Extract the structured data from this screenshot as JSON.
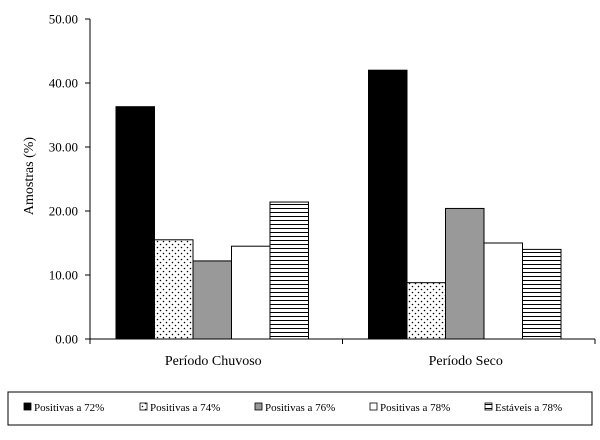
{
  "chart_data": {
    "type": "bar",
    "title": "",
    "xlabel": "",
    "ylabel": "Amostras (%)",
    "ylim": [
      0,
      50
    ],
    "yticks": [
      "0.00",
      "10.00",
      "20.00",
      "30.00",
      "40.00",
      "50.00"
    ],
    "grid": false,
    "legend_position": "bottom",
    "categories": [
      "Período Chuvoso",
      "Período Seco"
    ],
    "series": [
      {
        "name": "Positivas a 72%",
        "pattern": "solid-black",
        "color": "#000000",
        "values": [
          36.3,
          42.0
        ]
      },
      {
        "name": "Positivas a 74%",
        "pattern": "dots",
        "color": "#ffffff",
        "values": [
          15.5,
          8.8
        ]
      },
      {
        "name": "Positivas a 76%",
        "pattern": "solid-gray",
        "color": "#999999",
        "values": [
          12.2,
          20.4
        ]
      },
      {
        "name": "Positivas a 78%",
        "pattern": "solid-white",
        "color": "#ffffff",
        "values": [
          14.5,
          15.0
        ]
      },
      {
        "name": "Estáveis a 78%",
        "pattern": "horizontal-lines",
        "color": "#ffffff",
        "values": [
          21.4,
          14.0
        ]
      }
    ]
  }
}
